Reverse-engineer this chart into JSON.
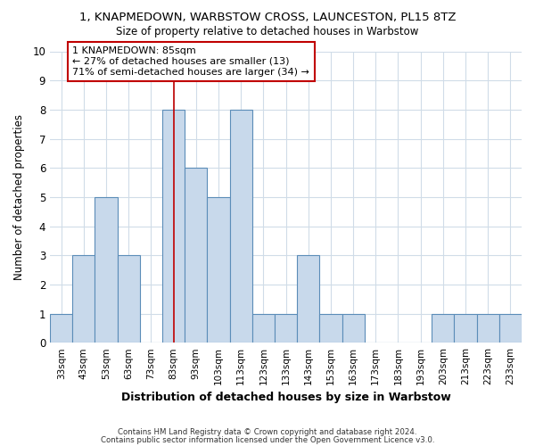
{
  "title": "1, KNAPMEDOWN, WARBSTOW CROSS, LAUNCESTON, PL15 8TZ",
  "subtitle": "Size of property relative to detached houses in Warbstow",
  "xlabel": "Distribution of detached houses by size in Warbstow",
  "ylabel": "Number of detached properties",
  "footer_line1": "Contains HM Land Registry data © Crown copyright and database right 2024.",
  "footer_line2": "Contains public sector information licensed under the Open Government Licence v3.0.",
  "categories": [
    "33sqm",
    "43sqm",
    "53sqm",
    "63sqm",
    "73sqm",
    "83sqm",
    "93sqm",
    "103sqm",
    "113sqm",
    "123sqm",
    "133sqm",
    "143sqm",
    "153sqm",
    "163sqm",
    "173sqm",
    "183sqm",
    "193sqm",
    "203sqm",
    "213sqm",
    "223sqm",
    "233sqm"
  ],
  "values": [
    1,
    3,
    5,
    3,
    0,
    8,
    6,
    5,
    8,
    1,
    1,
    3,
    1,
    1,
    0,
    0,
    0,
    1,
    1,
    1,
    1
  ],
  "bar_color": "#c8d9eb",
  "bar_edge_color": "#5b8db8",
  "highlight_index": 5,
  "highlight_color": "#c00000",
  "ylim": [
    0,
    10
  ],
  "yticks": [
    0,
    1,
    2,
    3,
    4,
    5,
    6,
    7,
    8,
    9,
    10
  ],
  "annotation_line1": "1 KNAPMEDOWN: 85sqm",
  "annotation_line2": "← 27% of detached houses are smaller (13)",
  "annotation_line3": "71% of semi-detached houses are larger (34) →",
  "annotation_box_color": "#c00000",
  "background_color": "#ffffff",
  "plot_bg_color": "#ffffff",
  "grid_color": "#d0dce8"
}
